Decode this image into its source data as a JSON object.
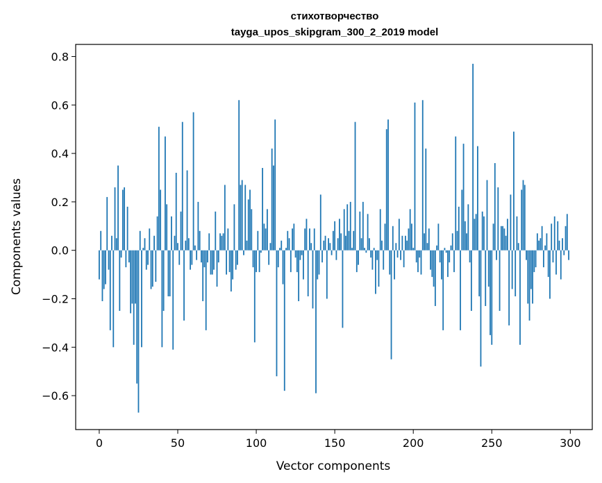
{
  "chart_data": {
    "type": "bar",
    "title_line1": "стихотворчество",
    "title_line2": "tayga_upos_skipgram_300_2_2019 model",
    "xlabel": "Vector components",
    "ylabel": "Components values",
    "xlim": [
      -15,
      314
    ],
    "ylim": [
      -0.74,
      0.85
    ],
    "x_ticks": [
      0,
      50,
      100,
      150,
      200,
      250,
      300
    ],
    "x_tick_labels": [
      "0",
      "50",
      "100",
      "150",
      "200",
      "250",
      "300"
    ],
    "y_ticks": [
      -0.6,
      -0.4,
      -0.2,
      0.0,
      0.2,
      0.4,
      0.6,
      0.8
    ],
    "y_tick_labels": [
      "−0.6",
      "−0.4",
      "−0.2",
      "0.0",
      "0.2",
      "0.4",
      "0.6",
      "0.8"
    ],
    "bar_color": "#1f77b4",
    "grid": false,
    "values": [
      -0.12,
      0.08,
      -0.21,
      -0.16,
      -0.14,
      0.22,
      -0.08,
      -0.33,
      0.06,
      -0.4,
      0.26,
      0.05,
      0.35,
      -0.25,
      -0.03,
      0.25,
      0.26,
      -0.07,
      0.18,
      -0.05,
      -0.26,
      -0.22,
      -0.39,
      -0.22,
      -0.55,
      -0.67,
      0.08,
      -0.4,
      0.01,
      0.05,
      -0.08,
      -0.06,
      0.09,
      -0.16,
      -0.15,
      0.06,
      -0.13,
      0.14,
      0.51,
      0.25,
      -0.4,
      -0.25,
      0.47,
      0.19,
      -0.19,
      -0.19,
      0.14,
      -0.41,
      0.06,
      0.32,
      0.03,
      -0.06,
      0.16,
      0.53,
      -0.29,
      0.04,
      0.33,
      0.05,
      -0.08,
      -0.06,
      0.57,
      0.02,
      -0.04,
      0.2,
      0.08,
      -0.05,
      -0.21,
      -0.07,
      -0.33,
      -0.05,
      0.07,
      -0.1,
      -0.1,
      -0.08,
      0.16,
      -0.15,
      -0.05,
      0.07,
      0.06,
      0.07,
      0.27,
      -0.1,
      0.09,
      -0.09,
      -0.17,
      -0.12,
      0.19,
      -0.08,
      -0.06,
      0.62,
      0.27,
      0.29,
      -0.02,
      0.27,
      0.04,
      0.21,
      0.25,
      0.17,
      -0.07,
      -0.38,
      -0.09,
      0.08,
      -0.09,
      -0.01,
      0.34,
      0.11,
      0.09,
      0.17,
      -0.06,
      0.03,
      0.42,
      0.35,
      0.54,
      -0.52,
      -0.07,
      0.01,
      0.04,
      -0.14,
      -0.58,
      0.01,
      0.08,
      0.05,
      -0.09,
      0.09,
      0.11,
      -0.03,
      -0.09,
      -0.21,
      -0.04,
      -0.02,
      -0.12,
      0.09,
      0.13,
      -0.19,
      0.09,
      0.03,
      -0.24,
      0.09,
      -0.59,
      -0.12,
      -0.1,
      0.23,
      -0.05,
      0.04,
      0.06,
      -0.2,
      0.05,
      0.03,
      -0.02,
      0.08,
      0.12,
      -0.04,
      0.05,
      0.13,
      0.07,
      -0.32,
      0.17,
      0.06,
      0.19,
      0.08,
      0.2,
      0.01,
      0.08,
      0.53,
      -0.09,
      -0.06,
      0.16,
      0.05,
      0.2,
      0.01,
      -0.01,
      0.15,
      0.05,
      -0.03,
      -0.08,
      0.01,
      -0.18,
      -0.04,
      -0.15,
      0.17,
      0.04,
      -0.08,
      0.11,
      0.5,
      0.54,
      -0.1,
      -0.45,
      0.1,
      -0.12,
      0.03,
      -0.03,
      0.13,
      -0.04,
      0.06,
      -0.07,
      0.06,
      0.04,
      0.09,
      0.17,
      0.11,
      0.01,
      0.61,
      -0.05,
      -0.09,
      -0.03,
      -0.1,
      0.62,
      0.07,
      0.42,
      0.03,
      0.09,
      -0.08,
      -0.11,
      -0.15,
      -0.23,
      0.02,
      0.11,
      -0.05,
      -0.12,
      -0.33,
      0.01,
      -0.01,
      -0.11,
      -0.05,
      0.02,
      0.07,
      -0.09,
      0.47,
      0.08,
      0.18,
      -0.33,
      0.25,
      0.44,
      0.12,
      0.07,
      0.19,
      -0.05,
      -0.25,
      0.77,
      0.13,
      0.15,
      0.43,
      -0.19,
      -0.48,
      0.16,
      0.14,
      -0.23,
      0.29,
      -0.15,
      -0.35,
      -0.39,
      0.11,
      0.36,
      -0.04,
      0.26,
      -0.25,
      0.1,
      0.1,
      0.09,
      0.06,
      0.13,
      -0.31,
      0.23,
      -0.16,
      0.49,
      -0.19,
      0.14,
      0.03,
      -0.39,
      0.25,
      0.29,
      0.27,
      -0.04,
      -0.22,
      -0.29,
      -0.16,
      -0.22,
      -0.09,
      -0.07,
      0.07,
      0.04,
      0.05,
      0.1,
      -0.07,
      0.02,
      0.07,
      -0.11,
      -0.2,
      0.11,
      -0.05,
      0.14,
      -0.1,
      0.12,
      0.04,
      -0.12,
      0.05,
      -0.02,
      0.1,
      0.15,
      -0.04
    ]
  }
}
